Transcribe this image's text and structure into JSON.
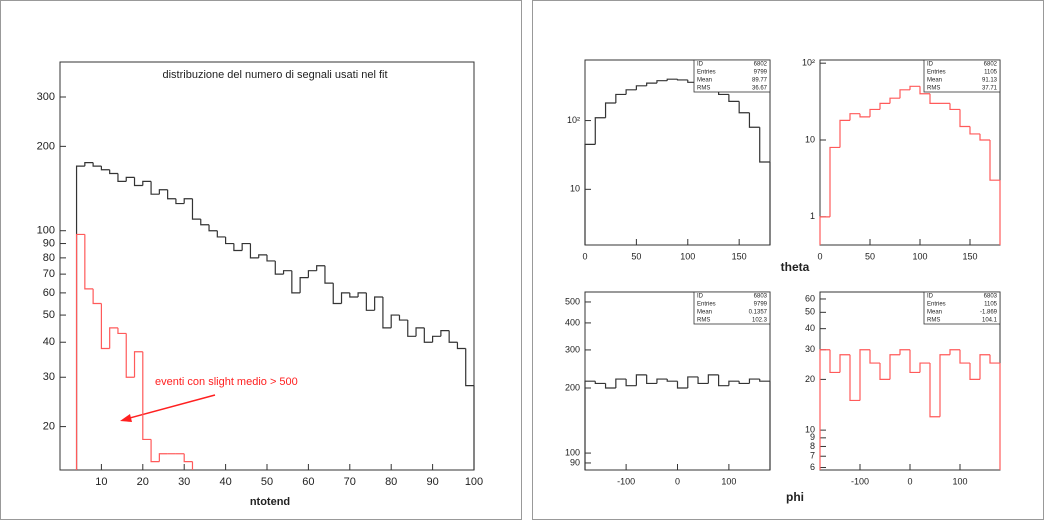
{
  "chart_data": [
    {
      "type": "histogram",
      "title": "distribuzione del numero di segnali usati nel fit",
      "xlabel": "ntotend",
      "annotation": "eventi con slight medio > 500",
      "bins": [
        4,
        6,
        8,
        10,
        12,
        14,
        16,
        18,
        20,
        22,
        24,
        26,
        28,
        30,
        32,
        34,
        36,
        38,
        40,
        42,
        44,
        46,
        48,
        50,
        52,
        54,
        56,
        58,
        60,
        62,
        64,
        66,
        68,
        70,
        72,
        74,
        76,
        78,
        80,
        82,
        84,
        86,
        88,
        90,
        92,
        94,
        96,
        98,
        100
      ],
      "series": [
        {
          "color": "#333333",
          "values": [
            170,
            175,
            170,
            165,
            160,
            150,
            155,
            145,
            150,
            135,
            140,
            130,
            125,
            130,
            110,
            105,
            100,
            95,
            90,
            85,
            90,
            80,
            82,
            78,
            70,
            72,
            60,
            68,
            72,
            75,
            65,
            55,
            60,
            58,
            60,
            52,
            58,
            45,
            50,
            48,
            42,
            45,
            40,
            42,
            44,
            40,
            38,
            28
          ]
        },
        {
          "color": "#ff5a5a",
          "bins": [
            4,
            6,
            8,
            10,
            12,
            14,
            16,
            18,
            20,
            22,
            24,
            26,
            28,
            30,
            32
          ],
          "values": [
            97,
            62,
            55,
            38,
            45,
            43,
            30,
            37,
            18,
            15,
            16,
            16,
            16,
            15
          ]
        }
      ],
      "xlim": [
        0,
        100
      ],
      "xticks": [
        10,
        20,
        30,
        40,
        50,
        60,
        70,
        80,
        90,
        100
      ],
      "ylim": [
        14,
        400
      ],
      "yticks": [
        20,
        30,
        40,
        50,
        60,
        70,
        80,
        90,
        100,
        200,
        300
      ],
      "log_y": true
    },
    {
      "type": "histogram",
      "bins": [
        0,
        10,
        20,
        30,
        40,
        50,
        60,
        70,
        80,
        90,
        100,
        110,
        120,
        130,
        140,
        150,
        160,
        170,
        180
      ],
      "series": [
        {
          "color": "#333333",
          "values": [
            45,
            110,
            180,
            240,
            280,
            320,
            350,
            380,
            400,
            390,
            360,
            330,
            290,
            240,
            190,
            130,
            80,
            25
          ]
        }
      ],
      "xlim": [
        0,
        180
      ],
      "xticks": [
        0,
        50,
        100,
        150
      ],
      "ylim": [
        1.55,
        760
      ],
      "yticks": [
        10,
        {
          "value": 100,
          "label": "10²"
        }
      ],
      "log_y": true,
      "stats": [
        {
          "label": "ID",
          "value": 6802
        },
        {
          "label": "Entries",
          "value": 9799
        },
        {
          "label": "Mean",
          "value": 89.77
        },
        {
          "label": "RMS",
          "value": 36.67
        }
      ]
    },
    {
      "type": "histogram",
      "bins": [
        0,
        10,
        20,
        30,
        40,
        50,
        60,
        70,
        80,
        90,
        100,
        110,
        120,
        130,
        140,
        150,
        160,
        170,
        180
      ],
      "series": [
        {
          "color": "#ff5a5a",
          "values": [
            1,
            8,
            18,
            22,
            20,
            25,
            30,
            35,
            45,
            50,
            40,
            30,
            30,
            25,
            15,
            12,
            10,
            3
          ]
        }
      ],
      "xlim": [
        0,
        180
      ],
      "xticks": [
        0,
        50,
        100,
        150
      ],
      "ylim": [
        0.43,
        110
      ],
      "yticks": [
        1,
        10,
        {
          "value": 100,
          "label": "10²"
        }
      ],
      "log_y": true,
      "stats": [
        {
          "label": "ID",
          "value": 6802
        },
        {
          "label": "Entries",
          "value": 1105
        },
        {
          "label": "Mean",
          "value": 91.13
        },
        {
          "label": "RMS",
          "value": 37.71
        }
      ]
    },
    {
      "type": "histogram",
      "bins": [
        -180,
        -160,
        -140,
        -120,
        -100,
        -80,
        -60,
        -40,
        -20,
        0,
        20,
        40,
        60,
        80,
        100,
        120,
        140,
        160,
        180
      ],
      "series": [
        {
          "color": "#333333",
          "values": [
            215,
            210,
            200,
            220,
            205,
            230,
            210,
            220,
            215,
            200,
            225,
            210,
            230,
            205,
            215,
            210,
            220,
            215
          ]
        }
      ],
      "xlim": [
        -180,
        180
      ],
      "xticks": [
        -100,
        0,
        100
      ],
      "ylim": [
        83.5,
        556
      ],
      "yticks": [
        90,
        100,
        200,
        300,
        400,
        500
      ],
      "log_y": true,
      "stats": [
        {
          "label": "ID",
          "value": 6803
        },
        {
          "label": "Entries",
          "value": 9799
        },
        {
          "label": "Mean",
          "value": 0.1357
        },
        {
          "label": "RMS",
          "value": 102.3
        }
      ]
    },
    {
      "type": "histogram",
      "bins": [
        -180,
        -160,
        -140,
        -120,
        -100,
        -80,
        -60,
        -40,
        -20,
        0,
        20,
        40,
        60,
        80,
        100,
        120,
        140,
        160,
        180
      ],
      "series": [
        {
          "color": "#ff5a5a",
          "values": [
            30,
            22,
            28,
            15,
            30,
            25,
            20,
            28,
            30,
            22,
            25,
            12,
            28,
            30,
            25,
            20,
            28,
            25
          ]
        }
      ],
      "xlim": [
        -180,
        180
      ],
      "xticks": [
        -100,
        0,
        100
      ],
      "ylim": [
        5.8,
        66
      ],
      "yticks": [
        6,
        7,
        8,
        9,
        10,
        20,
        30,
        40,
        50,
        60
      ],
      "log_y": true,
      "stats": [
        {
          "label": "ID",
          "value": 6803
        },
        {
          "label": "Entries",
          "value": 1105
        },
        {
          "label": "Mean",
          "value": -1.869
        },
        {
          "label": "RMS",
          "value": 104.1
        }
      ]
    }
  ],
  "row_labels": [
    "theta",
    "phi"
  ]
}
